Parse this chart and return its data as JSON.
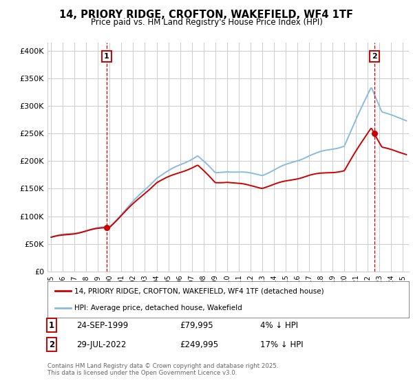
{
  "title_line1": "14, PRIORY RIDGE, CROFTON, WAKEFIELD, WF4 1TF",
  "title_line2": "Price paid vs. HM Land Registry's House Price Index (HPI)",
  "ylabel_ticks": [
    "£0",
    "£50K",
    "£100K",
    "£150K",
    "£200K",
    "£250K",
    "£300K",
    "£350K",
    "£400K"
  ],
  "ytick_values": [
    0,
    50000,
    100000,
    150000,
    200000,
    250000,
    300000,
    350000,
    400000
  ],
  "ylim": [
    0,
    415000
  ],
  "xlim_start": 1994.7,
  "xlim_end": 2025.5,
  "sale1_x": 1999.73,
  "sale1_y": 79995,
  "sale1_label": "1",
  "sale2_x": 2022.57,
  "sale2_y": 249995,
  "sale2_label": "2",
  "sale1_date": "24-SEP-1999",
  "sale1_price": "£79,995",
  "sale1_hpi": "4% ↓ HPI",
  "sale2_date": "29-JUL-2022",
  "sale2_price": "£249,995",
  "sale2_hpi": "17% ↓ HPI",
  "legend_line1": "14, PRIORY RIDGE, CROFTON, WAKEFIELD, WF4 1TF (detached house)",
  "legend_line2": "HPI: Average price, detached house, Wakefield",
  "footnote": "Contains HM Land Registry data © Crown copyright and database right 2025.\nThis data is licensed under the Open Government Licence v3.0.",
  "line_color_sale": "#cc0000",
  "line_color_hpi": "#88bbdd",
  "background_color": "#ffffff",
  "grid_color": "#cccccc",
  "xtick_years": [
    1995,
    1996,
    1997,
    1998,
    1999,
    2000,
    2001,
    2002,
    2003,
    2004,
    2005,
    2006,
    2007,
    2008,
    2009,
    2010,
    2011,
    2012,
    2013,
    2014,
    2015,
    2016,
    2017,
    2018,
    2019,
    2020,
    2021,
    2022,
    2023,
    2024,
    2025
  ]
}
